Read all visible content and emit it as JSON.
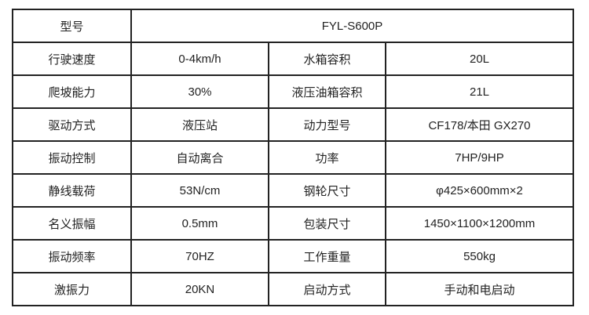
{
  "model": {
    "label": "型号",
    "value": "FYL-S600P"
  },
  "rows": [
    [
      "行驶速度",
      "0-4km/h",
      "水箱容积",
      "20L"
    ],
    [
      "爬坡能力",
      "30%",
      "液压油箱容积",
      "21L"
    ],
    [
      "驱动方式",
      "液压站",
      "动力型号",
      "CF178/本田 GX270"
    ],
    [
      "振动控制",
      "自动离合",
      "功率",
      "7HP/9HP"
    ],
    [
      "静线载荷",
      "53N/cm",
      "钢轮尺寸",
      "φ425×600mm×2"
    ],
    [
      "名义振幅",
      "0.5mm",
      "包装尺寸",
      "1450×1100×1200mm"
    ],
    [
      "振动频率",
      "70HZ",
      "工作重量",
      "550kg"
    ],
    [
      "激振力",
      "20KN",
      "启动方式",
      "手动和电启动"
    ]
  ]
}
